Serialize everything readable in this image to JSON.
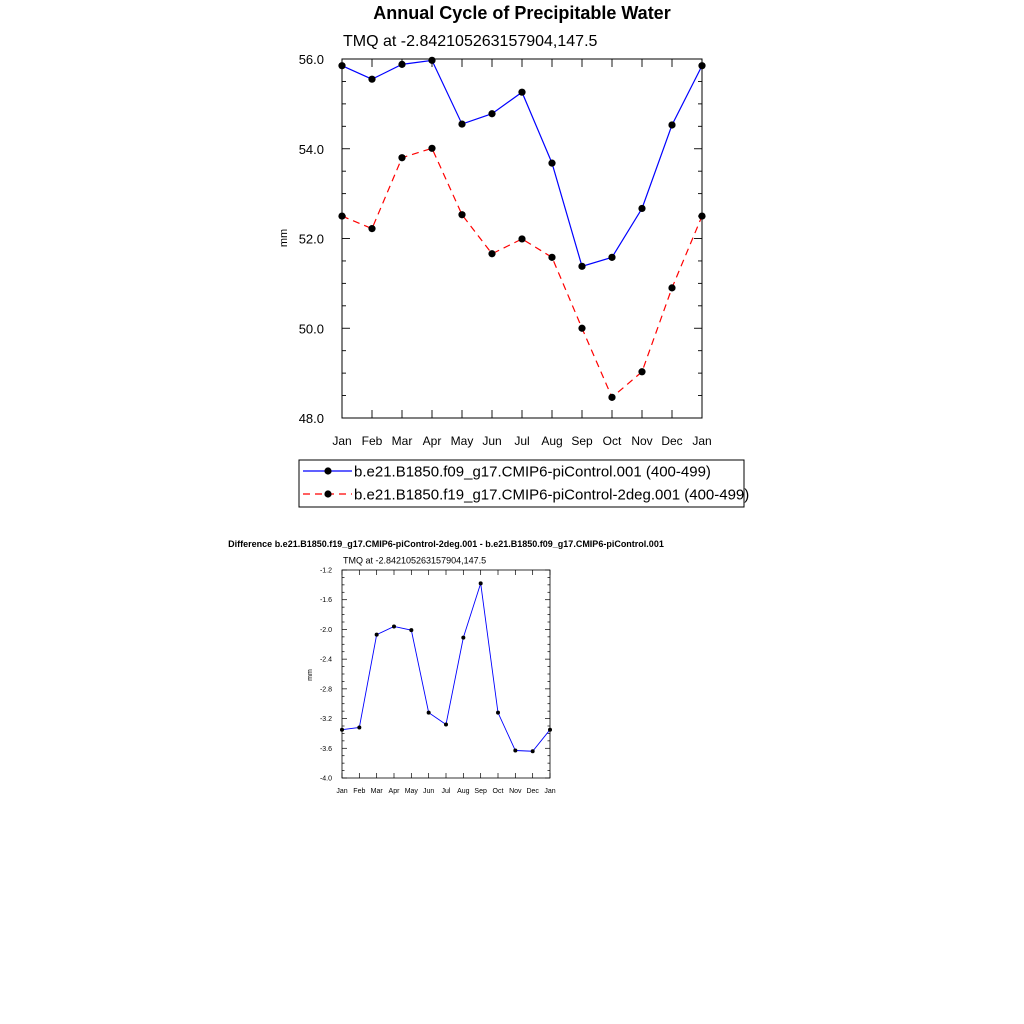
{
  "chart_data": [
    {
      "type": "line",
      "title": "Annual Cycle of Precipitable Water",
      "subtitle": "TMQ at -2.842105263157904,147.5",
      "ylabel": "mm",
      "xlabel": "",
      "ylim": [
        48.0,
        56.0
      ],
      "yticks": [
        48.0,
        50.0,
        52.0,
        54.0,
        56.0
      ],
      "yticks_labels": [
        "48.0",
        "50.0",
        "52.0",
        "54.0",
        "56.0"
      ],
      "categories": [
        "Jan",
        "Feb",
        "Mar",
        "Apr",
        "May",
        "Jun",
        "Jul",
        "Aug",
        "Sep",
        "Oct",
        "Nov",
        "Dec",
        "Jan"
      ],
      "legend_position": "bottom",
      "series": [
        {
          "name": "b.e21.B1850.f09_g17.CMIP6-piControl.001 (400-499)",
          "color": "#0000ff",
          "dash": "solid",
          "values": [
            55.85,
            55.55,
            55.88,
            55.97,
            54.55,
            54.78,
            55.26,
            53.68,
            51.38,
            51.58,
            52.67,
            54.53,
            55.85
          ]
        },
        {
          "name": "b.e21.B1850.f19_g17.CMIP6-piControl-2deg.001 (400-499)",
          "color": "#ff0000",
          "dash": "dashed",
          "values": [
            52.5,
            52.22,
            53.8,
            54.01,
            52.53,
            51.66,
            51.99,
            51.58,
            50.0,
            48.46,
            49.03,
            50.9,
            52.5
          ]
        }
      ]
    },
    {
      "type": "line",
      "title": "Difference b.e21.B1850.f19_g17.CMIP6-piControl-2deg.001 - b.e21.B1850.f09_g17.CMIP6-piControl.001",
      "subtitle": "TMQ at -2.842105263157904,147.5",
      "ylabel": "mm",
      "xlabel": "",
      "ylim": [
        -4.0,
        -1.2
      ],
      "yticks": [
        -4.0,
        -3.6,
        -3.2,
        -2.8,
        -2.4,
        -2.0,
        -1.6,
        -1.2
      ],
      "yticks_labels": [
        "-4.0",
        "-3.6",
        "-3.2",
        "-2.8",
        "-2.4",
        "-2.0",
        "-1.6",
        "-1.2"
      ],
      "categories": [
        "Jan",
        "Feb",
        "Mar",
        "Apr",
        "May",
        "Jun",
        "Jul",
        "Aug",
        "Sep",
        "Oct",
        "Nov",
        "Dec",
        "Jan"
      ],
      "series": [
        {
          "color": "#0000ff",
          "dash": "solid",
          "values": [
            -3.35,
            -3.32,
            -2.07,
            -1.96,
            -2.01,
            -3.12,
            -3.28,
            -2.11,
            -1.38,
            -3.12,
            -3.63,
            -3.64,
            -3.35
          ]
        }
      ]
    }
  ]
}
